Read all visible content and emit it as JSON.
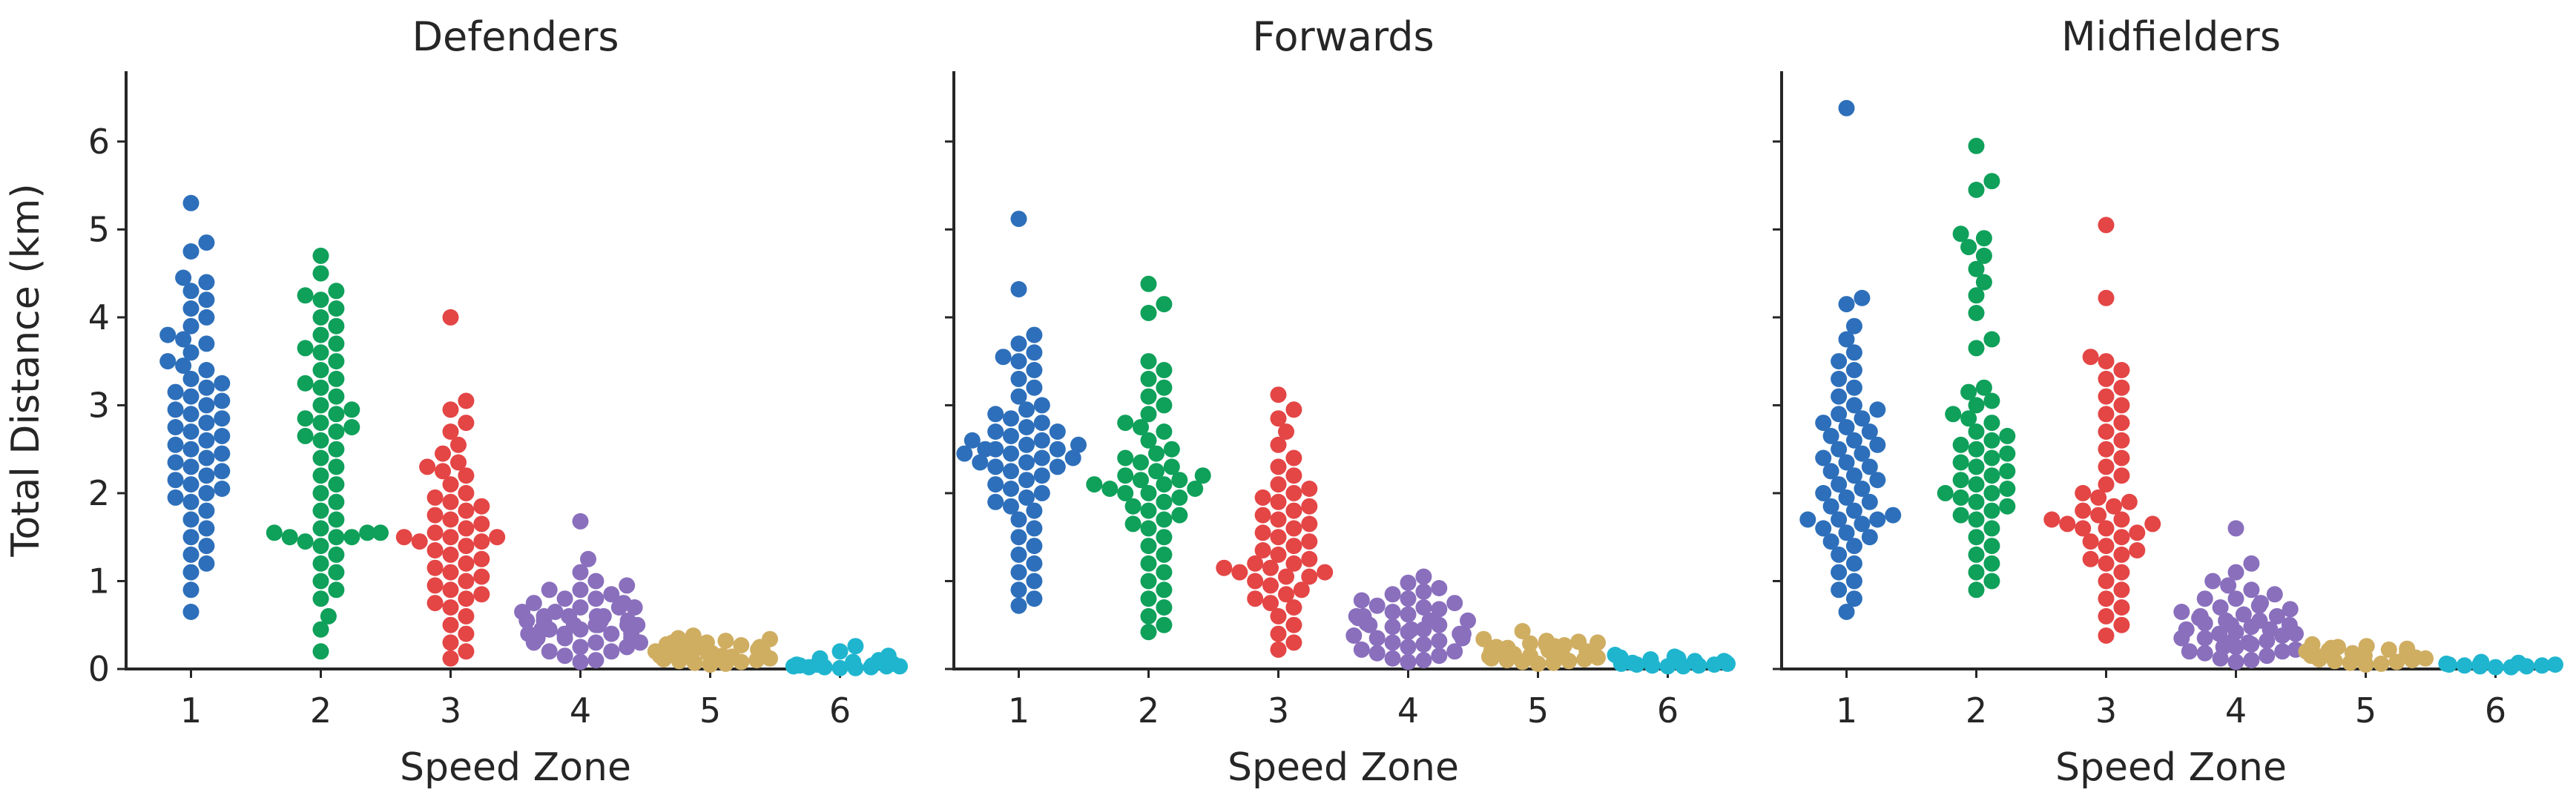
{
  "chart_data": {
    "type": "scatter",
    "subtype": "swarm",
    "ylabel": "Total Distance (km)",
    "ylim": [
      0,
      6.8
    ],
    "y_ticks": [
      0,
      1,
      2,
      3,
      4,
      5,
      6
    ],
    "categories": [
      "1",
      "2",
      "3",
      "4",
      "5",
      "6"
    ],
    "zone_colors": [
      "#2d6fba",
      "#0fa05a",
      "#e44545",
      "#8a6fbd",
      "#cfae62",
      "#1fb5cf"
    ],
    "grid": false,
    "legend": "none",
    "panels": [
      {
        "title": "Defenders",
        "xlabel": "Speed Zone",
        "show_ylabel": true,
        "zones": [
          {
            "zone": "1",
            "max": 5.3,
            "points": [
              5.3,
              4.85,
              4.75,
              4.45,
              4.4,
              4.3,
              4.2,
              4.1,
              4.0,
              3.9,
              3.8,
              3.75,
              3.7,
              3.6,
              3.5,
              3.45,
              3.4,
              3.3,
              3.25,
              3.2,
              3.15,
              3.1,
              3.05,
              3.0,
              2.95,
              2.9,
              2.85,
              2.8,
              2.75,
              2.7,
              2.65,
              2.6,
              2.55,
              2.5,
              2.45,
              2.4,
              2.35,
              2.3,
              2.25,
              2.2,
              2.15,
              2.1,
              2.05,
              2.0,
              1.95,
              1.9,
              1.8,
              1.7,
              1.6,
              1.5,
              1.4,
              1.3,
              1.2,
              1.1,
              0.9,
              0.65
            ]
          },
          {
            "zone": "2",
            "max": 4.7,
            "points": [
              4.7,
              4.5,
              4.3,
              4.25,
              4.2,
              4.1,
              4.0,
              3.9,
              3.8,
              3.7,
              3.65,
              3.6,
              3.5,
              3.4,
              3.3,
              3.25,
              3.2,
              3.1,
              3.0,
              2.95,
              2.9,
              2.85,
              2.8,
              2.75,
              2.7,
              2.65,
              2.6,
              2.5,
              2.4,
              2.3,
              2.2,
              2.1,
              2.0,
              1.9,
              1.8,
              1.7,
              1.6,
              1.55,
              1.55,
              1.55,
              1.5,
              1.5,
              1.5,
              1.45,
              1.4,
              1.3,
              1.2,
              1.1,
              1.0,
              0.9,
              0.8,
              0.6,
              0.45,
              0.2
            ]
          },
          {
            "zone": "3",
            "max": 4.0,
            "points": [
              4.0,
              3.05,
              2.95,
              2.8,
              2.7,
              2.55,
              2.45,
              2.35,
              2.3,
              2.25,
              2.2,
              2.1,
              2.0,
              1.95,
              1.9,
              1.85,
              1.8,
              1.75,
              1.7,
              1.65,
              1.6,
              1.55,
              1.5,
              1.5,
              1.5,
              1.45,
              1.45,
              1.4,
              1.35,
              1.3,
              1.25,
              1.2,
              1.15,
              1.1,
              1.05,
              1.0,
              0.95,
              0.9,
              0.85,
              0.8,
              0.75,
              0.7,
              0.6,
              0.5,
              0.4,
              0.3,
              0.2,
              0.12
            ]
          },
          {
            "zone": "4",
            "max": 1.68,
            "points": [
              1.68,
              1.25,
              1.1,
              1.0,
              0.95,
              0.9,
              0.9,
              0.85,
              0.8,
              0.8,
              0.75,
              0.75,
              0.7,
              0.7,
              0.7,
              0.65,
              0.65,
              0.6,
              0.6,
              0.6,
              0.6,
              0.55,
              0.55,
              0.55,
              0.55,
              0.5,
              0.5,
              0.5,
              0.5,
              0.5,
              0.45,
              0.45,
              0.45,
              0.45,
              0.4,
              0.4,
              0.4,
              0.4,
              0.35,
              0.35,
              0.35,
              0.3,
              0.3,
              0.3,
              0.25,
              0.25,
              0.2,
              0.2,
              0.15,
              0.1,
              0.08
            ]
          },
          {
            "zone": "5",
            "max": 0.38,
            "points": [
              0.38,
              0.35,
              0.34,
              0.32,
              0.3,
              0.3,
              0.28,
              0.27,
              0.26,
              0.25,
              0.25,
              0.24,
              0.23,
              0.22,
              0.22,
              0.21,
              0.2,
              0.2,
              0.19,
              0.18,
              0.18,
              0.17,
              0.16,
              0.15,
              0.15,
              0.14,
              0.13,
              0.12,
              0.11,
              0.1,
              0.09,
              0.08,
              0.07,
              0.06,
              0.05
            ]
          },
          {
            "zone": "6",
            "max": 0.26,
            "points": [
              0.26,
              0.2,
              0.15,
              0.12,
              0.1,
              0.08,
              0.06,
              0.05,
              0.05,
              0.04,
              0.04,
              0.03,
              0.03,
              0.03,
              0.02,
              0.02,
              0.02,
              0.01,
              0.01
            ]
          }
        ]
      },
      {
        "title": "Forwards",
        "xlabel": "Speed Zone",
        "show_ylabel": false,
        "zones": [
          {
            "zone": "1",
            "max": 5.12,
            "points": [
              5.12,
              4.32,
              3.8,
              3.7,
              3.6,
              3.55,
              3.5,
              3.4,
              3.3,
              3.2,
              3.1,
              3.0,
              2.95,
              2.9,
              2.85,
              2.8,
              2.75,
              2.7,
              2.7,
              2.65,
              2.6,
              2.6,
              2.55,
              2.55,
              2.5,
              2.5,
              2.5,
              2.45,
              2.45,
              2.4,
              2.4,
              2.35,
              2.35,
              2.3,
              2.3,
              2.25,
              2.2,
              2.15,
              2.1,
              2.05,
              2.0,
              1.95,
              1.9,
              1.85,
              1.8,
              1.7,
              1.6,
              1.5,
              1.4,
              1.3,
              1.2,
              1.1,
              1.0,
              0.9,
              0.8,
              0.72
            ]
          },
          {
            "zone": "2",
            "max": 4.38,
            "points": [
              4.38,
              4.15,
              4.05,
              3.5,
              3.4,
              3.3,
              3.2,
              3.1,
              3.0,
              2.9,
              2.8,
              2.75,
              2.7,
              2.6,
              2.5,
              2.45,
              2.4,
              2.35,
              2.3,
              2.25,
              2.2,
              2.2,
              2.15,
              2.15,
              2.1,
              2.1,
              2.05,
              2.05,
              2.0,
              2.0,
              1.95,
              1.9,
              1.85,
              1.8,
              1.75,
              1.7,
              1.65,
              1.6,
              1.5,
              1.4,
              1.3,
              1.2,
              1.1,
              1.0,
              0.9,
              0.8,
              0.7,
              0.6,
              0.5,
              0.42
            ]
          },
          {
            "zone": "3",
            "max": 3.12,
            "points": [
              3.12,
              2.95,
              2.85,
              2.7,
              2.55,
              2.4,
              2.3,
              2.2,
              2.1,
              2.05,
              2.0,
              1.95,
              1.9,
              1.85,
              1.8,
              1.75,
              1.7,
              1.65,
              1.6,
              1.55,
              1.5,
              1.45,
              1.4,
              1.35,
              1.3,
              1.25,
              1.2,
              1.2,
              1.15,
              1.15,
              1.1,
              1.1,
              1.05,
              1.05,
              1.0,
              0.95,
              0.9,
              0.85,
              0.8,
              0.75,
              0.7,
              0.6,
              0.5,
              0.4,
              0.3,
              0.22
            ]
          },
          {
            "zone": "4",
            "max": 1.05,
            "points": [
              1.05,
              0.98,
              0.92,
              0.88,
              0.85,
              0.8,
              0.78,
              0.75,
              0.72,
              0.7,
              0.68,
              0.65,
              0.62,
              0.6,
              0.6,
              0.58,
              0.55,
              0.55,
              0.52,
              0.5,
              0.5,
              0.48,
              0.45,
              0.45,
              0.42,
              0.4,
              0.4,
              0.38,
              0.35,
              0.35,
              0.32,
              0.3,
              0.28,
              0.25,
              0.22,
              0.2,
              0.18,
              0.15,
              0.12,
              0.1,
              0.08
            ]
          },
          {
            "zone": "5",
            "max": 0.43,
            "points": [
              0.43,
              0.34,
              0.32,
              0.31,
              0.3,
              0.29,
              0.28,
              0.27,
              0.26,
              0.25,
              0.24,
              0.23,
              0.22,
              0.21,
              0.2,
              0.2,
              0.19,
              0.18,
              0.17,
              0.16,
              0.15,
              0.14,
              0.13,
              0.12,
              0.11,
              0.1,
              0.09,
              0.08,
              0.07,
              0.06
            ]
          },
          {
            "zone": "6",
            "max": 0.16,
            "points": [
              0.16,
              0.14,
              0.13,
              0.12,
              0.11,
              0.1,
              0.09,
              0.09,
              0.08,
              0.07,
              0.06,
              0.06,
              0.05,
              0.05,
              0.04,
              0.04,
              0.03,
              0.03
            ]
          }
        ]
      },
      {
        "title": "Midfielders",
        "xlabel": "Speed Zone",
        "show_ylabel": false,
        "zones": [
          {
            "zone": "1",
            "max": 6.38,
            "points": [
              6.38,
              4.22,
              4.15,
              3.9,
              3.75,
              3.6,
              3.5,
              3.4,
              3.3,
              3.2,
              3.1,
              3.0,
              2.95,
              2.9,
              2.85,
              2.8,
              2.75,
              2.7,
              2.65,
              2.6,
              2.55,
              2.5,
              2.45,
              2.4,
              2.35,
              2.3,
              2.25,
              2.2,
              2.15,
              2.1,
              2.05,
              2.0,
              1.95,
              1.9,
              1.85,
              1.8,
              1.75,
              1.7,
              1.7,
              1.7,
              1.65,
              1.6,
              1.55,
              1.5,
              1.45,
              1.4,
              1.3,
              1.2,
              1.1,
              1.0,
              0.9,
              0.8,
              0.65
            ]
          },
          {
            "zone": "2",
            "max": 5.95,
            "points": [
              5.95,
              5.55,
              5.45,
              4.95,
              4.9,
              4.8,
              4.7,
              4.55,
              4.4,
              4.25,
              4.05,
              3.75,
              3.65,
              3.2,
              3.15,
              3.05,
              3.0,
              2.9,
              2.85,
              2.8,
              2.7,
              2.65,
              2.6,
              2.55,
              2.5,
              2.45,
              2.4,
              2.35,
              2.3,
              2.25,
              2.2,
              2.15,
              2.1,
              2.05,
              2.0,
              2.0,
              1.95,
              1.9,
              1.85,
              1.8,
              1.75,
              1.7,
              1.6,
              1.5,
              1.4,
              1.3,
              1.2,
              1.1,
              1.0,
              0.9
            ]
          },
          {
            "zone": "3",
            "max": 5.05,
            "points": [
              5.05,
              4.22,
              3.55,
              3.5,
              3.4,
              3.3,
              3.2,
              3.1,
              3.0,
              2.9,
              2.8,
              2.7,
              2.6,
              2.5,
              2.4,
              2.3,
              2.2,
              2.1,
              2.0,
              1.95,
              1.9,
              1.85,
              1.8,
              1.75,
              1.7,
              1.7,
              1.65,
              1.65,
              1.6,
              1.6,
              1.55,
              1.5,
              1.45,
              1.4,
              1.35,
              1.3,
              1.25,
              1.2,
              1.1,
              1.0,
              0.9,
              0.8,
              0.7,
              0.6,
              0.5,
              0.38
            ]
          },
          {
            "zone": "4",
            "max": 1.6,
            "points": [
              1.6,
              1.2,
              1.1,
              1.0,
              0.95,
              0.9,
              0.85,
              0.8,
              0.8,
              0.75,
              0.72,
              0.7,
              0.68,
              0.65,
              0.62,
              0.6,
              0.6,
              0.58,
              0.55,
              0.55,
              0.52,
              0.5,
              0.5,
              0.48,
              0.45,
              0.45,
              0.42,
              0.4,
              0.4,
              0.38,
              0.35,
              0.35,
              0.32,
              0.3,
              0.3,
              0.28,
              0.25,
              0.25,
              0.22,
              0.2,
              0.2,
              0.18,
              0.15,
              0.12,
              0.1,
              0.08
            ]
          },
          {
            "zone": "5",
            "max": 0.28,
            "points": [
              0.28,
              0.26,
              0.25,
              0.24,
              0.23,
              0.22,
              0.21,
              0.2,
              0.19,
              0.18,
              0.17,
              0.16,
              0.15,
              0.15,
              0.14,
              0.13,
              0.12,
              0.11,
              0.1,
              0.09,
              0.08,
              0.07,
              0.06,
              0.05
            ]
          },
          {
            "zone": "6",
            "max": 0.08,
            "points": [
              0.08,
              0.07,
              0.06,
              0.06,
              0.05,
              0.05,
              0.04,
              0.04,
              0.03,
              0.03,
              0.02,
              0.02
            ]
          }
        ]
      }
    ]
  }
}
